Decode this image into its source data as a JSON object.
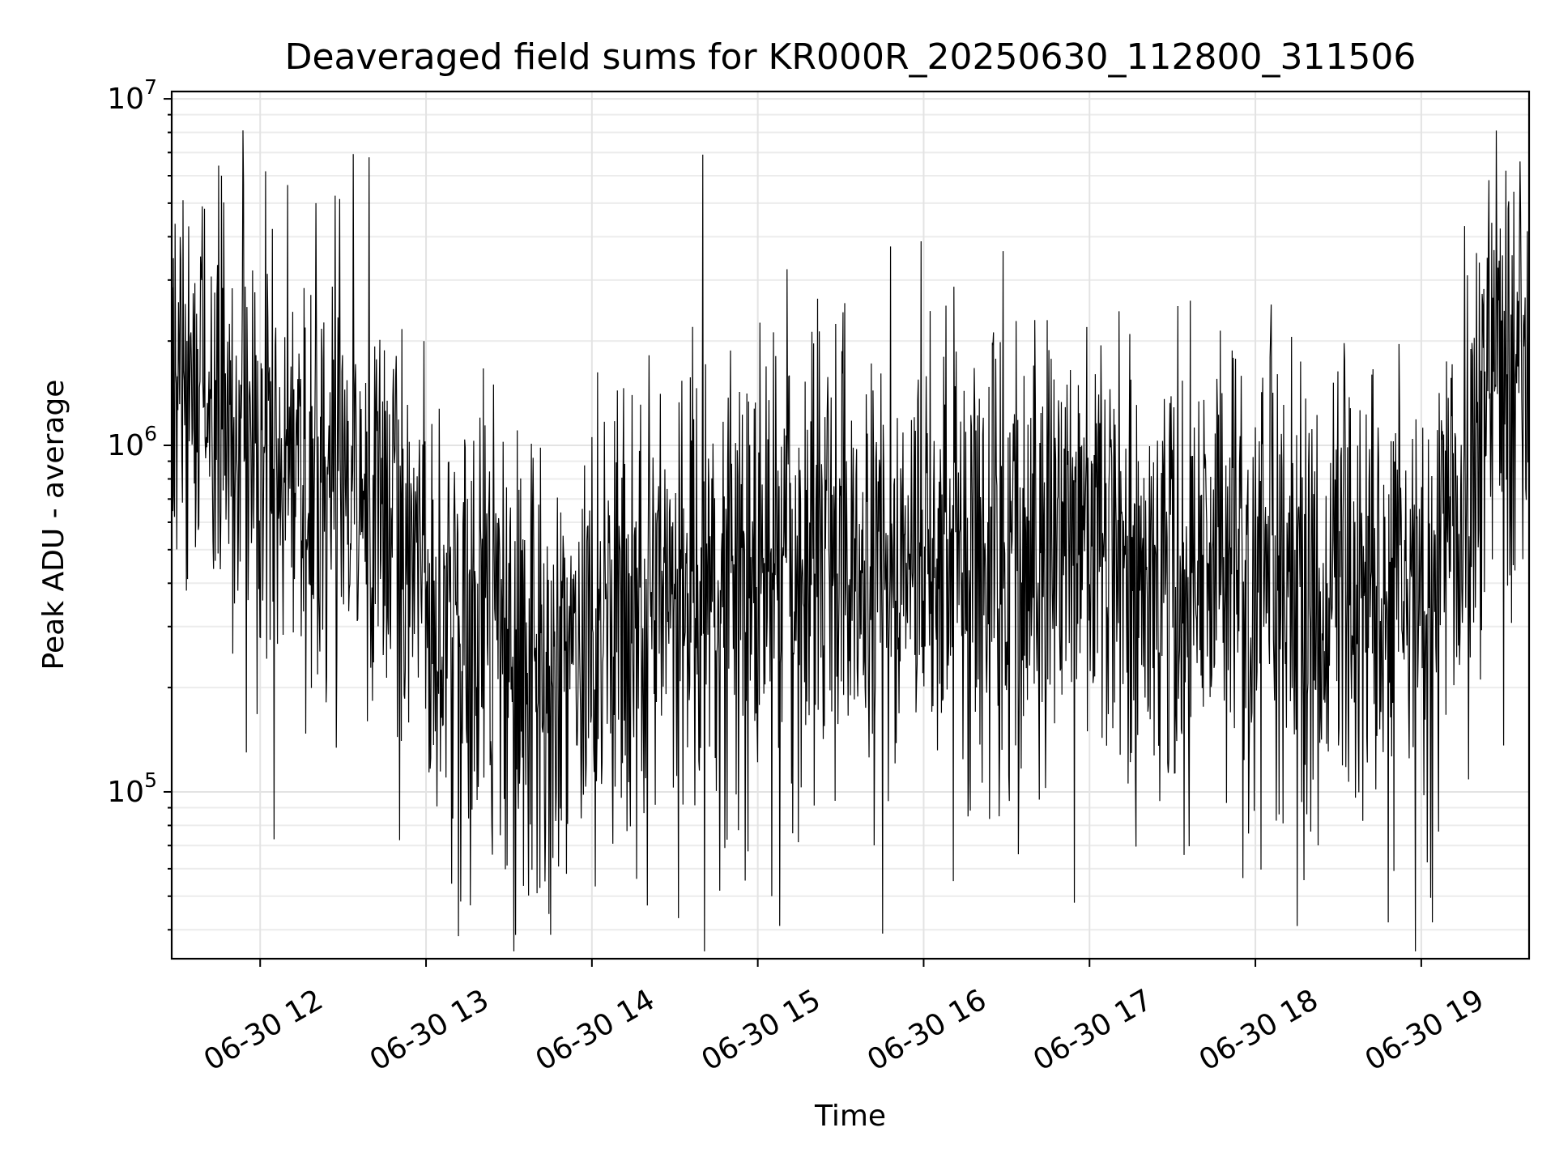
{
  "chart_data": {
    "type": "line",
    "title": "Deaveraged field sums for KR000R_20250630_112800_311506",
    "xlabel": "Time",
    "ylabel": "Peak ADU - average",
    "yscale": "log",
    "ylim": [
      33000,
      10500000
    ],
    "xlim": [
      "06-30 11:28",
      "06-30 19:39"
    ],
    "grid": true,
    "x_tick_labels": [
      "06-30 12",
      "06-30 13",
      "06-30 14",
      "06-30 15",
      "06-30 16",
      "06-30 17",
      "06-30 18",
      "06-30 19"
    ],
    "y_ticks": [
      {
        "base": "10",
        "exp": "5"
      },
      {
        "base": "10",
        "exp": "6"
      },
      {
        "base": "10",
        "exp": "7"
      }
    ],
    "series_color": "#000000",
    "series": [
      {
        "x": [
          "06-30 11:28",
          "06-30 11:45",
          "06-30 12:00",
          "06-30 12:20",
          "06-30 12:40",
          "06-30 13:00",
          "06-30 13:20",
          "06-30 13:40",
          "06-30 14:00",
          "06-30 14:20",
          "06-30 14:40",
          "06-30 15:00",
          "06-30 15:30",
          "06-30 16:00",
          "06-30 16:30",
          "06-30 17:00",
          "06-30 17:30",
          "06-30 18:00",
          "06-30 18:30",
          "06-30 19:00",
          "06-30 19:15",
          "06-30 19:25",
          "06-30 19:39"
        ],
        "values": [
          2000000,
          1600000,
          1000000,
          900000,
          800000,
          400000,
          300000,
          200000,
          250000,
          350000,
          400000,
          500000,
          500000,
          550000,
          450000,
          500000,
          450000,
          450000,
          400000,
          420000,
          800000,
          1800000,
          1700000
        ]
      }
    ],
    "annotations": [
      {
        "x": "06-30 11:32",
        "value": 5100000
      },
      {
        "x": "06-30 11:46",
        "value": 6000000
      },
      {
        "x": "06-30 11:55",
        "value": 130000
      },
      {
        "x": "06-30 12:05",
        "value": 73000
      },
      {
        "x": "06-30 12:20",
        "value": 5000000
      },
      {
        "x": "06-30 13:40",
        "value": 51000
      },
      {
        "x": "06-30 14:20",
        "value": 47000
      },
      {
        "x": "06-30 14:40",
        "value": 6900000
      },
      {
        "x": "06-30 15:05",
        "value": 50000
      },
      {
        "x": "06-30 15:45",
        "value": 39000
      },
      {
        "x": "06-30 16:40",
        "value": 2300000
      },
      {
        "x": "06-30 18:15",
        "value": 41000
      },
      {
        "x": "06-30 18:48",
        "value": 42000
      },
      {
        "x": "06-30 19:04",
        "value": 42000
      },
      {
        "x": "06-30 19:27",
        "value": 8100000
      }
    ]
  }
}
